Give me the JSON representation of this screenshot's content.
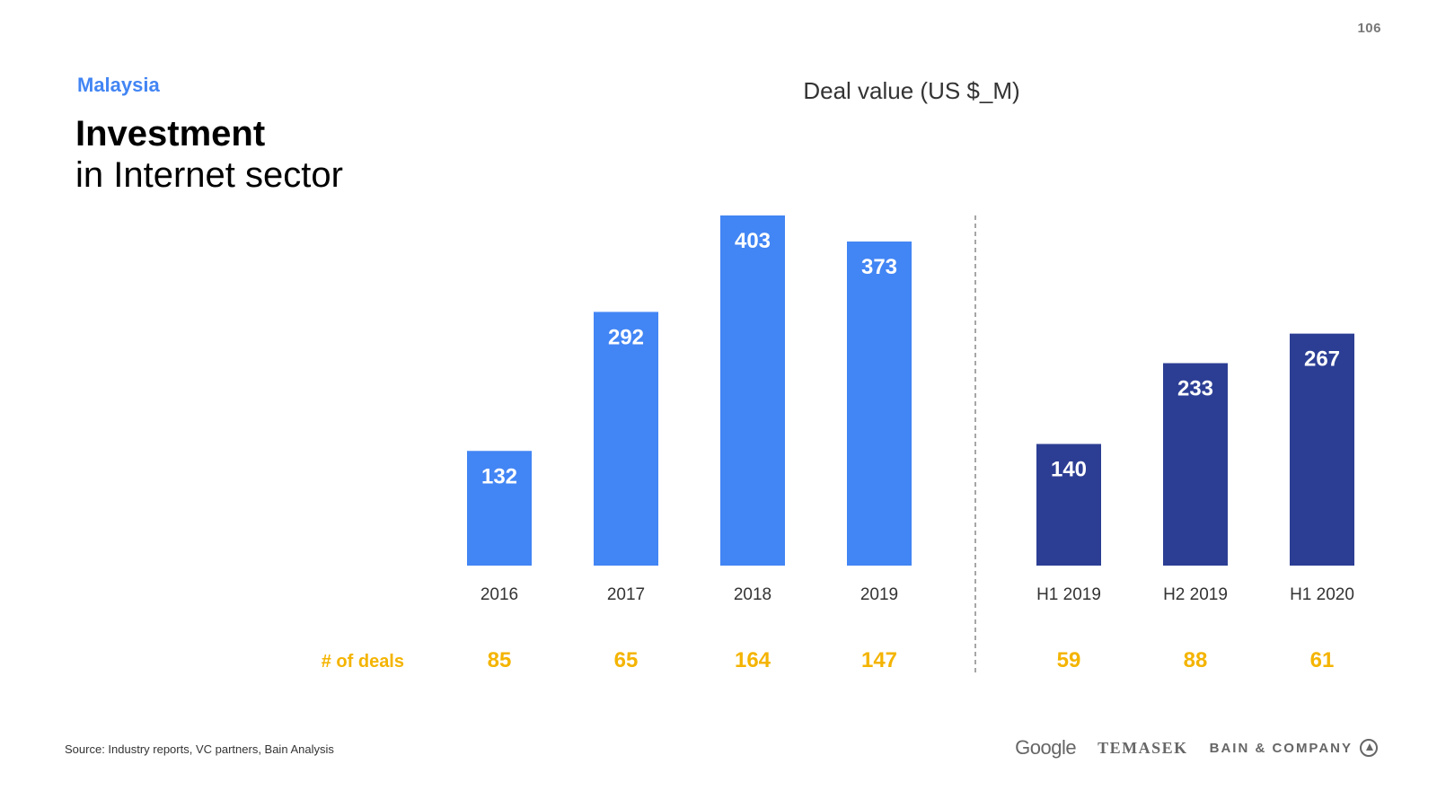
{
  "page_number": "106",
  "subtitle": "Malaysia",
  "title": {
    "bold": "Investment",
    "rest": "in Internet sector"
  },
  "deals_label": "# of deals",
  "source": "Source: Industry reports, VC partners, Bain Analysis",
  "logos": {
    "google": "Google",
    "temasek": "TEMASEK",
    "bain": "BAIN & COMPANY"
  },
  "colors": {
    "annual_bar": "#4285f4",
    "halfyear_bar": "#2c3e94",
    "deals": "#f4b400",
    "subtitle": "#4285f4"
  },
  "chart_data": {
    "type": "bar",
    "title": "Deal value (US $_M)",
    "xlabel": "",
    "ylabel": "",
    "ylim": [
      0,
      403
    ],
    "grid": false,
    "legend": "none",
    "categories": [
      "2016",
      "2017",
      "2018",
      "2019",
      "H1 2019",
      "H2 2019",
      "H1 2020"
    ],
    "values": [
      132,
      292,
      403,
      373,
      140,
      233,
      267
    ],
    "deals": [
      85,
      65,
      164,
      147,
      59,
      88,
      61
    ],
    "groups": [
      {
        "categories": [
          "2016",
          "2017",
          "2018",
          "2019"
        ],
        "color": "#4285f4"
      },
      {
        "categories": [
          "H1 2019",
          "H2 2019",
          "H1 2020"
        ],
        "color": "#2c3e94"
      }
    ]
  }
}
